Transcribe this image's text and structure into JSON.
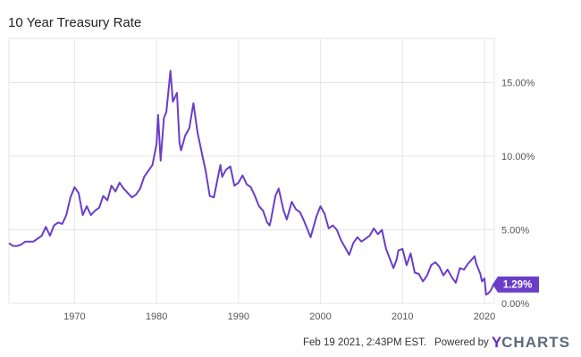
{
  "title": "10 Year Treasury Rate",
  "footer": {
    "timestamp": "Feb 19 2021, 2:43PM EST.",
    "powered_by": "Powered by",
    "logo_y": "Y",
    "logo_charts": "CHARTS"
  },
  "colors": {
    "line": "#6a3ec8",
    "grid": "#e6e6e6",
    "badge": "#6a3ec8"
  },
  "chart_data": {
    "type": "line",
    "title": "10 Year Treasury Rate",
    "xlim": [
      1962,
      2021.2
    ],
    "ylim": [
      0,
      18
    ],
    "x_ticks": [
      1970,
      1980,
      1990,
      2000,
      2010,
      2020
    ],
    "x_tick_labels": [
      "1970",
      "1980",
      "1990",
      "2000",
      "2010",
      "2020"
    ],
    "y_ticks": [
      0,
      5,
      10,
      15
    ],
    "y_tick_labels": [
      "0.00%",
      "5.00%",
      "10.00%",
      "15.00%"
    ],
    "last_value_label": "1.29%",
    "grid": true,
    "series": [
      {
        "values": [
          [
            1962.0,
            4.1
          ],
          [
            1962.5,
            3.9
          ],
          [
            1963.0,
            3.9
          ],
          [
            1963.5,
            4.0
          ],
          [
            1964.0,
            4.2
          ],
          [
            1965.0,
            4.2
          ],
          [
            1966.0,
            4.6
          ],
          [
            1966.5,
            5.2
          ],
          [
            1967.0,
            4.6
          ],
          [
            1967.5,
            5.3
          ],
          [
            1968.0,
            5.5
          ],
          [
            1968.5,
            5.4
          ],
          [
            1969.0,
            6.0
          ],
          [
            1969.5,
            7.2
          ],
          [
            1970.0,
            7.9
          ],
          [
            1970.5,
            7.5
          ],
          [
            1971.0,
            6.0
          ],
          [
            1971.5,
            6.6
          ],
          [
            1972.0,
            6.0
          ],
          [
            1972.5,
            6.3
          ],
          [
            1973.0,
            6.5
          ],
          [
            1973.5,
            7.3
          ],
          [
            1974.0,
            7.0
          ],
          [
            1974.5,
            8.0
          ],
          [
            1975.0,
            7.6
          ],
          [
            1975.5,
            8.2
          ],
          [
            1976.0,
            7.8
          ],
          [
            1976.5,
            7.5
          ],
          [
            1977.0,
            7.2
          ],
          [
            1977.5,
            7.4
          ],
          [
            1978.0,
            7.8
          ],
          [
            1978.5,
            8.6
          ],
          [
            1979.0,
            9.0
          ],
          [
            1979.5,
            9.4
          ],
          [
            1980.0,
            10.8
          ],
          [
            1980.2,
            12.8
          ],
          [
            1980.5,
            9.7
          ],
          [
            1980.9,
            12.6
          ],
          [
            1981.2,
            13.0
          ],
          [
            1981.7,
            15.8
          ],
          [
            1982.0,
            13.7
          ],
          [
            1982.5,
            14.3
          ],
          [
            1982.8,
            10.9
          ],
          [
            1983.0,
            10.4
          ],
          [
            1983.5,
            11.4
          ],
          [
            1984.0,
            11.9
          ],
          [
            1984.5,
            13.6
          ],
          [
            1985.0,
            11.6
          ],
          [
            1985.5,
            10.3
          ],
          [
            1986.0,
            9.0
          ],
          [
            1986.5,
            7.3
          ],
          [
            1987.0,
            7.2
          ],
          [
            1987.5,
            8.6
          ],
          [
            1987.8,
            9.4
          ],
          [
            1988.0,
            8.6
          ],
          [
            1988.5,
            9.1
          ],
          [
            1989.0,
            9.3
          ],
          [
            1989.5,
            8.0
          ],
          [
            1990.0,
            8.2
          ],
          [
            1990.5,
            8.7
          ],
          [
            1991.0,
            8.1
          ],
          [
            1991.5,
            7.9
          ],
          [
            1992.0,
            7.3
          ],
          [
            1992.5,
            6.6
          ],
          [
            1993.0,
            6.3
          ],
          [
            1993.5,
            5.5
          ],
          [
            1993.8,
            5.3
          ],
          [
            1994.0,
            5.8
          ],
          [
            1994.5,
            7.3
          ],
          [
            1994.9,
            7.8
          ],
          [
            1995.5,
            6.3
          ],
          [
            1995.9,
            5.7
          ],
          [
            1996.5,
            6.9
          ],
          [
            1997.0,
            6.4
          ],
          [
            1997.5,
            6.2
          ],
          [
            1998.0,
            5.6
          ],
          [
            1998.8,
            4.5
          ],
          [
            1999.5,
            5.9
          ],
          [
            2000.0,
            6.6
          ],
          [
            2000.5,
            6.1
          ],
          [
            2001.0,
            5.1
          ],
          [
            2001.5,
            5.3
          ],
          [
            2002.0,
            5.0
          ],
          [
            2002.5,
            4.3
          ],
          [
            2003.0,
            3.8
          ],
          [
            2003.5,
            3.3
          ],
          [
            2004.0,
            4.1
          ],
          [
            2004.5,
            4.5
          ],
          [
            2005.0,
            4.2
          ],
          [
            2005.5,
            4.4
          ],
          [
            2006.0,
            4.6
          ],
          [
            2006.5,
            5.1
          ],
          [
            2007.0,
            4.7
          ],
          [
            2007.5,
            5.0
          ],
          [
            2008.0,
            3.7
          ],
          [
            2008.9,
            2.4
          ],
          [
            2009.3,
            3.0
          ],
          [
            2009.5,
            3.6
          ],
          [
            2010.0,
            3.7
          ],
          [
            2010.5,
            2.6
          ],
          [
            2011.0,
            3.4
          ],
          [
            2011.5,
            2.1
          ],
          [
            2012.0,
            2.0
          ],
          [
            2012.5,
            1.5
          ],
          [
            2013.0,
            1.9
          ],
          [
            2013.5,
            2.6
          ],
          [
            2014.0,
            2.8
          ],
          [
            2014.5,
            2.5
          ],
          [
            2015.0,
            1.9
          ],
          [
            2015.5,
            2.3
          ],
          [
            2016.0,
            1.8
          ],
          [
            2016.5,
            1.4
          ],
          [
            2017.0,
            2.4
          ],
          [
            2017.5,
            2.3
          ],
          [
            2018.0,
            2.7
          ],
          [
            2018.8,
            3.2
          ],
          [
            2019.0,
            2.7
          ],
          [
            2019.5,
            2.0
          ],
          [
            2019.7,
            1.5
          ],
          [
            2020.0,
            1.7
          ],
          [
            2020.2,
            0.6
          ],
          [
            2020.5,
            0.7
          ],
          [
            2020.8,
            0.9
          ],
          [
            2021.1,
            1.29
          ]
        ]
      }
    ]
  }
}
